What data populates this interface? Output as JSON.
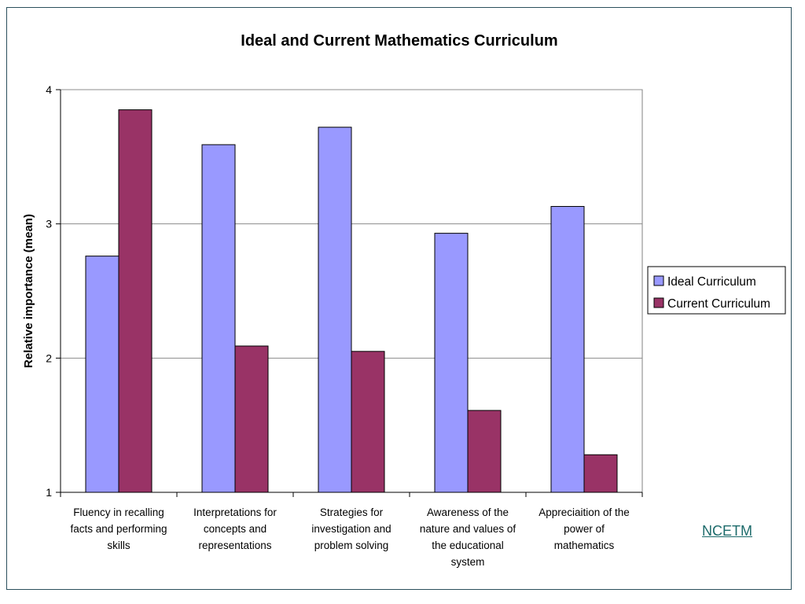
{
  "chart_data": {
    "type": "bar",
    "title": "Ideal and Current Mathematics Curriculum",
    "xlabel": "",
    "ylabel": "Relative importance (mean)",
    "ylim": [
      1,
      4
    ],
    "yticks": [
      1,
      2,
      3,
      4
    ],
    "grid": true,
    "legend": "right",
    "categories": [
      "Fluency in recalling facts and performing skills",
      "Interpretations for concepts and representations",
      "Strategies for investigation and problem solving",
      "Awareness of the nature and values of the educational system",
      "Appreciaition of the power of mathematics"
    ],
    "category_lines": [
      [
        "Fluency in recalling",
        "facts and performing",
        "skills"
      ],
      [
        "Interpretations for",
        "concepts and",
        "representations"
      ],
      [
        "Strategies for",
        "investigation and",
        "problem solving"
      ],
      [
        "Awareness of the",
        "nature and values of",
        "the educational",
        "system"
      ],
      [
        "Appreciaition of the",
        "power of",
        "mathematics"
      ]
    ],
    "series": [
      {
        "name": "Ideal Curriculum",
        "color": "#9999ff",
        "values": [
          2.76,
          3.59,
          3.72,
          2.93,
          3.13
        ]
      },
      {
        "name": "Current Curriculum",
        "color": "#993366",
        "values": [
          3.85,
          2.09,
          2.05,
          1.61,
          1.28
        ]
      }
    ]
  },
  "link": {
    "label": "NCETM"
  }
}
